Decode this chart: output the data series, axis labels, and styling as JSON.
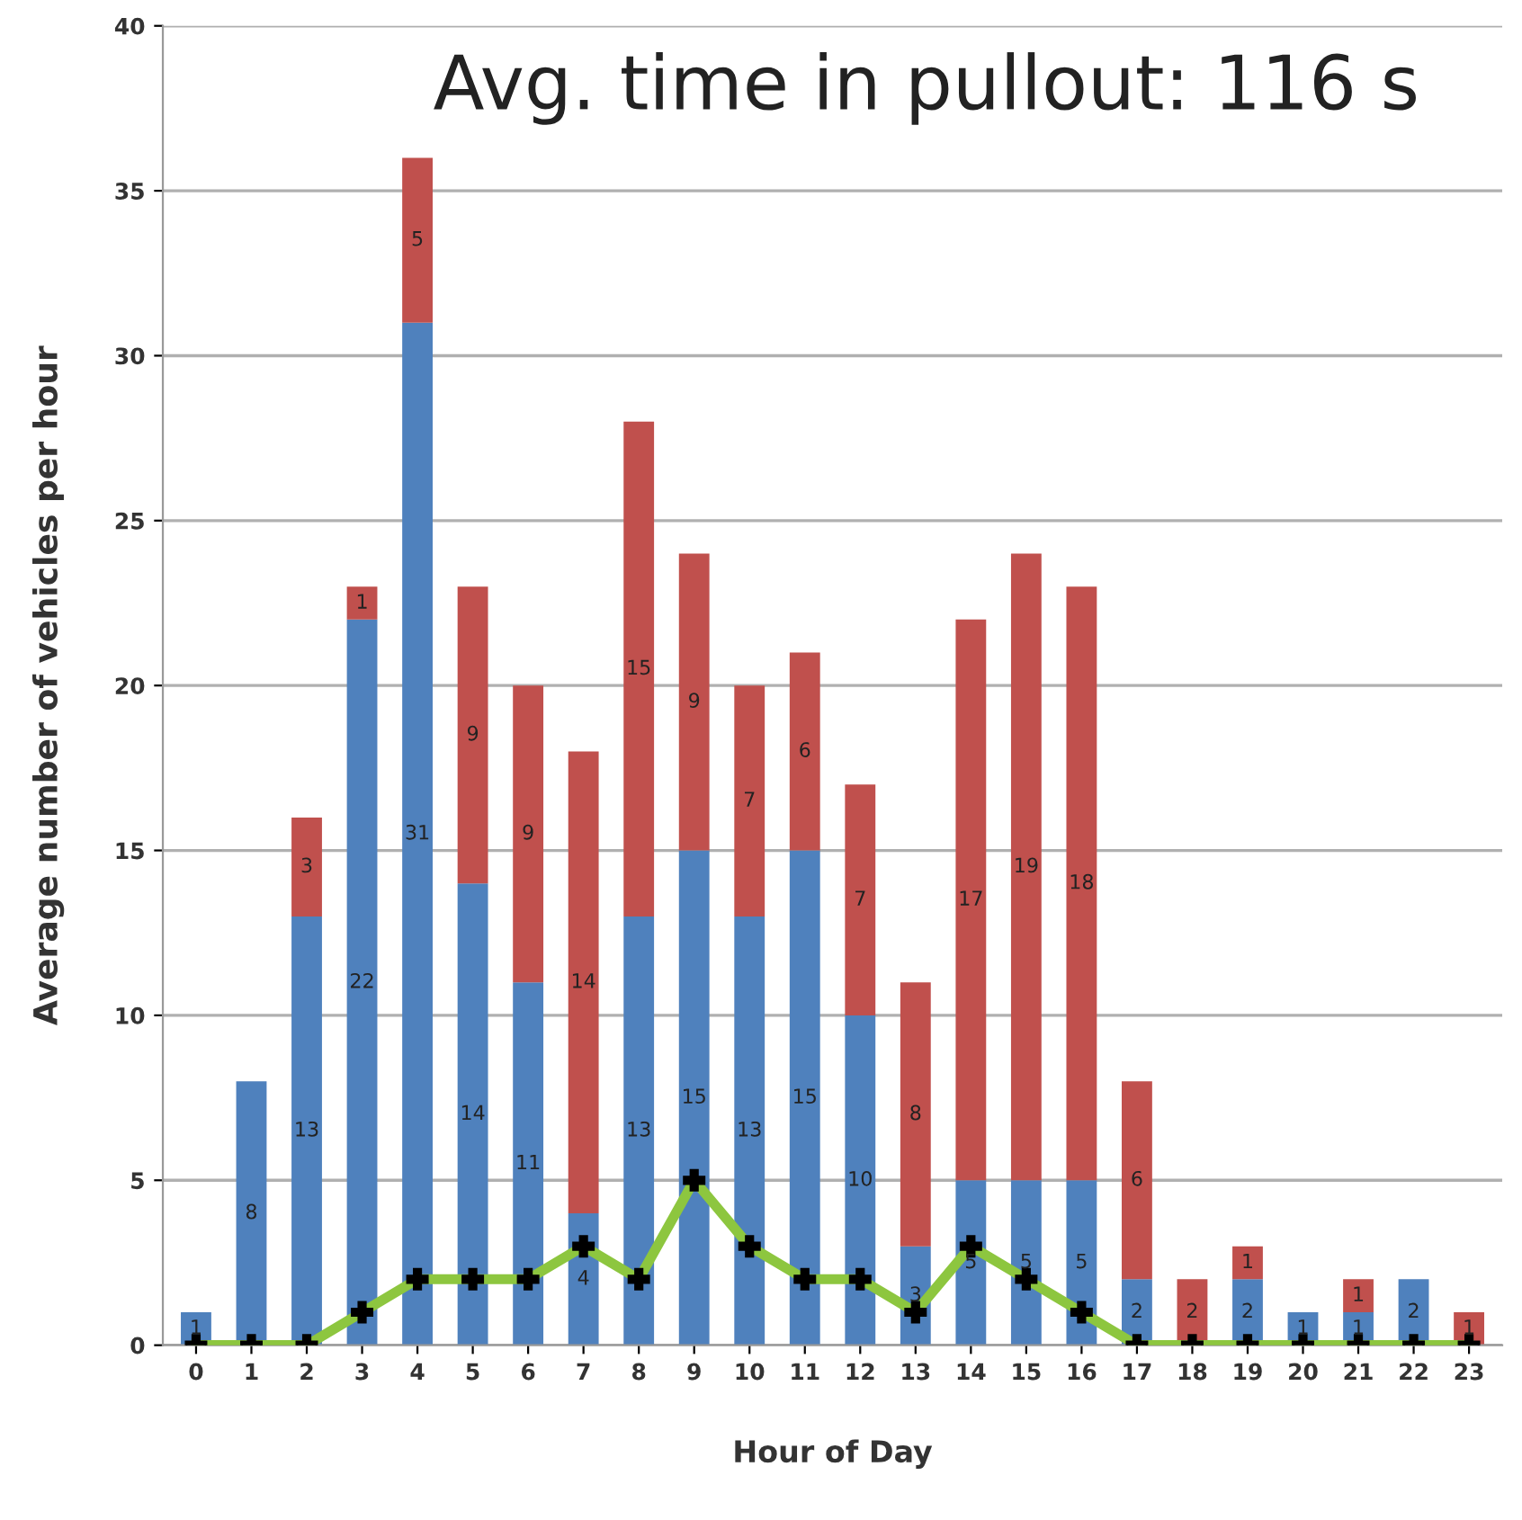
{
  "chart_data": {
    "type": "bar",
    "stacked": true,
    "title": "Avg. time in pullout: 116 s",
    "xlabel": "Hour of Day",
    "ylabel": "Average number of vehicles per hour",
    "categories": [
      "0",
      "1",
      "2",
      "3",
      "4",
      "5",
      "6",
      "7",
      "8",
      "9",
      "10",
      "11",
      "12",
      "13",
      "14",
      "15",
      "16",
      "17",
      "18",
      "19",
      "20",
      "21",
      "22",
      "23"
    ],
    "series": [
      {
        "color": "#4f81bd",
        "values": [
          1,
          8,
          13,
          22,
          31,
          14,
          11,
          4,
          13,
          15,
          13,
          15,
          10,
          3,
          5,
          5,
          5,
          2,
          0,
          2,
          1,
          1,
          2,
          0
        ],
        "value_labels": [
          "1",
          "8",
          "13",
          "22",
          "31",
          "14",
          "11",
          "4",
          "13",
          "15",
          "13",
          "15",
          "10",
          "3",
          "5",
          "5",
          "5",
          "2",
          null,
          "2",
          "1",
          "1",
          "2",
          null
        ]
      },
      {
        "color": "#c0504d",
        "values": [
          0,
          0,
          3,
          1,
          5,
          9,
          9,
          14,
          15,
          9,
          7,
          6,
          7,
          8,
          17,
          19,
          18,
          6,
          2,
          1,
          0,
          1,
          0,
          1
        ],
        "value_labels": [
          null,
          null,
          "3",
          "1",
          "5",
          "9",
          "9",
          "14",
          "15",
          "9",
          "7",
          "6",
          "7",
          "8",
          "17",
          "19",
          "18",
          "6",
          "2",
          "1",
          null,
          "1",
          null,
          "1"
        ]
      },
      {
        "type": "line",
        "color": "#8dc63f",
        "marker": "cross",
        "values": [
          0,
          0,
          0,
          1,
          2,
          2,
          2,
          3,
          2,
          5,
          3,
          2,
          2,
          1,
          3,
          2,
          1,
          0,
          0,
          0,
          0,
          0,
          0,
          0
        ]
      }
    ],
    "ylim": [
      0,
      40
    ],
    "yticks": [
      0,
      5,
      10,
      15,
      20,
      25,
      30,
      35,
      40
    ],
    "grid": "y",
    "legend": false
  }
}
